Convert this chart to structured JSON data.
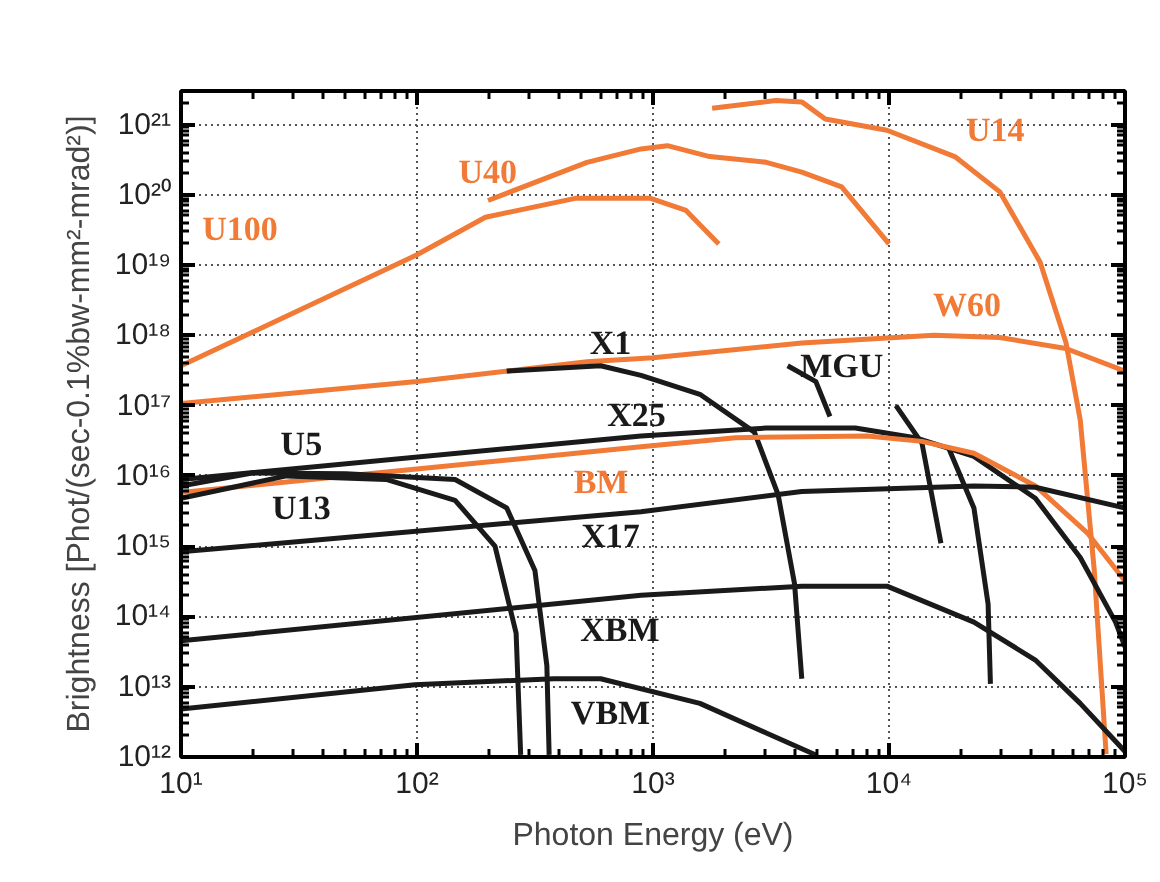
{
  "chart_data": {
    "type": "line",
    "xlabel": "Photon Energy (eV)",
    "ylabel": "Brightness [Phot/(sec-0.1%bw-mm²-mrad²)]",
    "log": "xy",
    "grid": true,
    "line_style": "solid",
    "marker": "none",
    "xlim": [
      10,
      100000
    ],
    "ylim": [
      1000000000000.0,
      3e+21
    ],
    "xticks": [
      {
        "value": 10,
        "label": "10¹"
      },
      {
        "value": 100,
        "label": "10²"
      },
      {
        "value": 1000,
        "label": "10³"
      },
      {
        "value": 10000,
        "label": "10⁴"
      },
      {
        "value": 100000,
        "label": "10⁵"
      }
    ],
    "yticks": [
      {
        "value": 1000000000000.0,
        "label": "10¹²"
      },
      {
        "value": 10000000000000.0,
        "label": "10¹³"
      },
      {
        "value": 100000000000000.0,
        "label": "10¹⁴"
      },
      {
        "value": 1000000000000000.0,
        "label": "10¹⁵"
      },
      {
        "value": 1e+16,
        "label": "10¹⁶"
      },
      {
        "value": 1e+17,
        "label": "10¹⁷"
      },
      {
        "value": 1e+18,
        "label": "10¹⁸"
      },
      {
        "value": 1e+19,
        "label": "10¹⁹"
      },
      {
        "value": 1e+20,
        "label": "10²⁰"
      },
      {
        "value": 1e+21,
        "label": "10²¹"
      }
    ],
    "series": [
      {
        "name": "U100",
        "color": "#f07a36",
        "x": [
          10,
          100,
          195,
          468,
          977,
          1380,
          1900
        ],
        "values": [
          3.7e+17,
          1.4e+19,
          4.8e+19,
          8.9e+19,
          8.9e+19,
          6e+19,
          2e+19
        ]
      },
      {
        "name": "U40",
        "color": "#f07a36",
        "x": [
          200,
          525,
          890,
          1150,
          1740,
          3020,
          4270,
          6300,
          10000
        ],
        "values": [
          8.3e+19,
          2.9e+20,
          4.5e+20,
          5e+20,
          3.5e+20,
          2.9e+20,
          2.1e+20,
          1.3e+20,
          2e+19
        ]
      },
      {
        "name": "U14",
        "color": "#f07a36",
        "x": [
          1780,
          3310,
          4270,
          5370,
          9800,
          19000,
          29500,
          43700,
          56200,
          64600,
          74100,
          83200
        ],
        "values": [
          1.7e+21,
          2.2e+21,
          2.1e+21,
          1.2e+21,
          8.3e+20,
          3.5e+20,
          1.1e+20,
          1.1e+19,
          7.9e+17,
          6.3e+16,
          450000000000000.0,
          1100000000000.0
        ]
      },
      {
        "name": "W60",
        "color": "#f07a36",
        "x": [
          10,
          100,
          525,
          1000,
          4270,
          15500,
          29500,
          56200,
          100000
        ],
        "values": [
          1.07e+17,
          2.2e+17,
          4.2e+17,
          4.8e+17,
          7.8e+17,
          1e+18,
          9.3e+17,
          6.5e+17,
          3.1e+17
        ]
      },
      {
        "name": "X1",
        "color": "#1a1a1a",
        "x": [
          240,
          600,
          890,
          1580,
          2690,
          3390,
          3980,
          4270
        ],
        "values": [
          3.1e+17,
          3.7e+17,
          2.7e+17,
          1.45e+17,
          4.2e+16,
          5400000000000000.0,
          290000000000000.0,
          13000000000000.0
        ]
      },
      {
        "name": "MGU",
        "color": "#1a1a1a",
        "x": [
          3720,
          4900,
          5620
        ],
        "values": [
          3.7e+17,
          2.2e+17,
          7e+16
        ]
      },
      {
        "color": "#1a1a1a",
        "x": [
          10700,
          13800,
          16600
        ],
        "values": [
          1e+17,
          2.9e+16,
          1100000000000000.0
        ]
      },
      {
        "color": "#1a1a1a",
        "x": [
          17800,
          22900,
          26300,
          26900
        ],
        "values": [
          2.6e+16,
          3500000000000000.0,
          150000000000000.0,
          11000000000000.0
        ]
      },
      {
        "name": "X25",
        "color": "#1a1a1a",
        "x": [
          10,
          890,
          3020,
          7200,
          12900,
          22900,
          41700,
          64600,
          91200,
          100000
        ],
        "values": [
          8900000000000000.0,
          3.7e+16,
          4.8e+16,
          4.8e+16,
          3.5e+16,
          1.9e+16,
          4800000000000000.0,
          690000000000000.0,
          83000000000000.0,
          37000000000000.0
        ]
      },
      {
        "name": "BM",
        "color": "#f07a36",
        "x": [
          10,
          50,
          890,
          2240,
          8100,
          13800,
          22900,
          41700,
          69200,
          100000
        ],
        "values": [
          5800000000000000.0,
          1e+16,
          2.6e+16,
          3.5e+16,
          3.7e+16,
          3.1e+16,
          2.1e+16,
          7200000000000000.0,
          1550000000000000.0,
          320000000000000.0
        ]
      },
      {
        "name": "X17",
        "color": "#1a1a1a",
        "x": [
          10,
          890,
          4270,
          22900,
          41700,
          100000
        ],
        "values": [
          830000000000000.0,
          3100000000000000.0,
          6000000000000000.0,
          7200000000000000.0,
          6900000000000000.0,
          3500000000000000.0
        ]
      },
      {
        "name": "XBM",
        "color": "#1a1a1a",
        "x": [
          10,
          890,
          4270,
          9800,
          22900,
          41700,
          64600,
          100000
        ],
        "values": [
          45000000000000.0,
          200000000000000.0,
          270000000000000.0,
          270000000000000.0,
          83000000000000.0,
          24000000000000.0,
          5800000000000.0,
          1200000000000.0
        ]
      },
      {
        "name": "VBM",
        "color": "#1a1a1a",
        "x": [
          10,
          98,
          380,
          600,
          1580,
          3020,
          4900
        ],
        "values": [
          4800000000000.0,
          10700000000000.0,
          13000000000000.0,
          13000000000000.0,
          5800000000000.0,
          2200000000000.0,
          1070000000000.0
        ]
      },
      {
        "name": "U5",
        "color": "#1a1a1a",
        "x": [
          10,
          20,
          50,
          145,
          240,
          316,
          355,
          363
        ],
        "values": [
          7200000000000000.0,
          1.1e+16,
          1.07e+16,
          8900000000000000.0,
          3500000000000000.0,
          450000000000000.0,
          20000000000000.0,
          1070000000000.0
        ]
      },
      {
        "name": "U13",
        "color": "#1a1a1a",
        "x": [
          10,
          28,
          74,
          145,
          214,
          263,
          275
        ],
        "values": [
          4800000000000000.0,
          1e+16,
          8900000000000000.0,
          4500000000000000.0,
          1000000000000000.0,
          58000000000000.0,
          1070000000000.0
        ]
      }
    ]
  }
}
